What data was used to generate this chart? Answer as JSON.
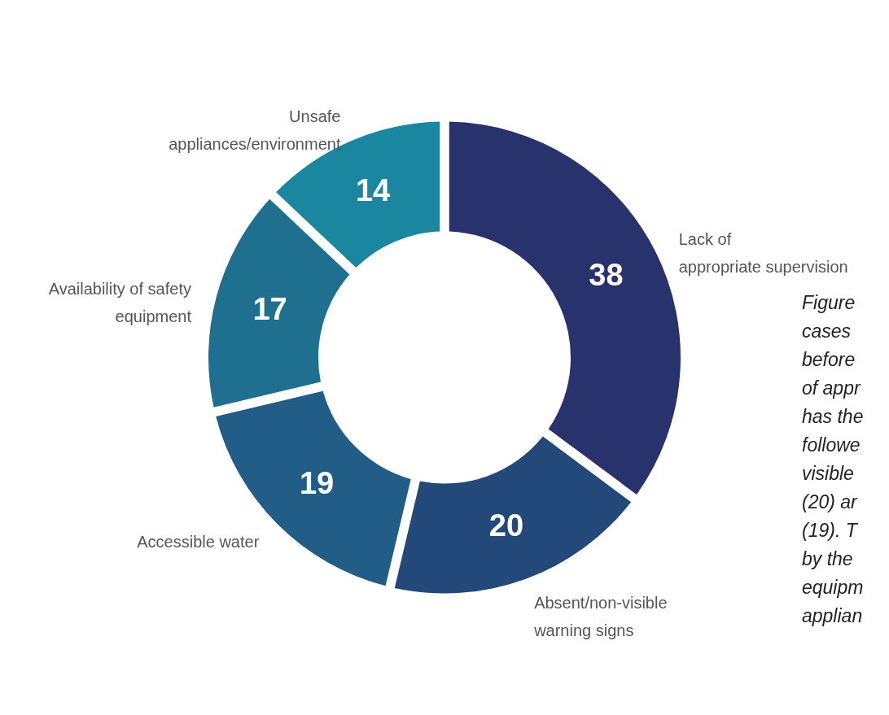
{
  "chart_data": {
    "type": "donut",
    "categories": [
      "Lack of\nappropriate supervision",
      "Absent/non-visible\nwarning signs",
      "Accessible water",
      "Availability of safety\nequipment",
      "Unsafe\nappliances/environment"
    ],
    "values": [
      38,
      20,
      19,
      17,
      14
    ],
    "colors": [
      "#28336e",
      "#23497a",
      "#225d87",
      "#1f6f8e",
      "#1a869f"
    ],
    "data_labels": true,
    "annotations": [
      "Figure\ncases\nbefore\nof appr\nhas the\nfollowe\nvisible\n(20) ar\n(19). T\nby the\nequipm\napplian"
    ]
  }
}
